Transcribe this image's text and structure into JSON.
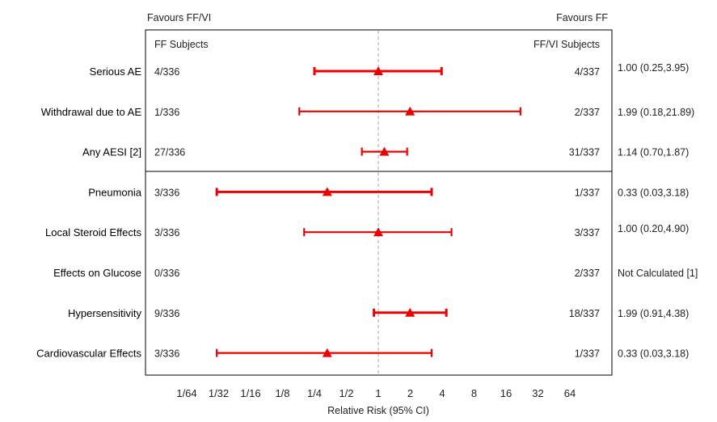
{
  "chart_data": {
    "type": "forest",
    "header_left": "Favours FF/VI",
    "header_right": "Favours FF",
    "col_left": "FF Subjects",
    "col_right": "FF/VI Subjects",
    "xlabel": "Relative Risk (95% CI)",
    "xscale": "log2",
    "xlim": [
      0.015625,
      64
    ],
    "reference_line": 1,
    "colors": {
      "marker": "#ee0000",
      "reference": "#aaaaaa",
      "frame": "#000000"
    },
    "xticks": [
      {
        "value": 0.015625,
        "label": "1/64"
      },
      {
        "value": 0.03125,
        "label": "1/32"
      },
      {
        "value": 0.0625,
        "label": "1/16"
      },
      {
        "value": 0.125,
        "label": "1/8"
      },
      {
        "value": 0.25,
        "label": "1/4"
      },
      {
        "value": 0.5,
        "label": "1/2"
      },
      {
        "value": 1,
        "label": "1"
      },
      {
        "value": 2,
        "label": "2"
      },
      {
        "value": 4,
        "label": "4"
      },
      {
        "value": 8,
        "label": "8"
      },
      {
        "value": 16,
        "label": "16"
      },
      {
        "value": 32,
        "label": "32"
      },
      {
        "value": 64,
        "label": "64"
      }
    ],
    "rows": [
      {
        "label": "Serious AE",
        "left": "4/336",
        "right": "4/337",
        "rr": 1.0,
        "lo": 0.25,
        "hi": 3.95,
        "text": "1.00 (0.25,3.95)",
        "thick": true
      },
      {
        "label": "Withdrawal due to AE",
        "left": "1/336",
        "right": "2/337",
        "rr": 1.99,
        "lo": 0.18,
        "hi": 21.89,
        "text": "1.99 (0.18,21.89)"
      },
      {
        "label": "Any AESI [2]",
        "left": "27/336",
        "right": "31/337",
        "rr": 1.14,
        "lo": 0.7,
        "hi": 1.87,
        "text": "1.14 (0.70,1.87)"
      },
      {
        "label": "Pneumonia",
        "left": "3/336",
        "right": "1/337",
        "rr": 0.33,
        "lo": 0.03,
        "hi": 3.18,
        "text": "0.33 (0.03,3.18)",
        "thick": true
      },
      {
        "label": "Local Steroid Effects",
        "left": "3/336",
        "right": "3/337",
        "rr": 1.0,
        "lo": 0.2,
        "hi": 4.9,
        "text": "1.00 (0.20,4.90)"
      },
      {
        "label": "Effects on Glucose",
        "left": "0/336",
        "right": "2/337",
        "rr": null,
        "lo": null,
        "hi": null,
        "text": "Not Calculated [1]"
      },
      {
        "label": "Hypersensitivity",
        "left": "9/336",
        "right": "18/337",
        "rr": 1.99,
        "lo": 0.91,
        "hi": 4.38,
        "text": "1.99 (0.91,4.38)",
        "thick": true
      },
      {
        "label": "Cardiovascular Effects",
        "left": "3/336",
        "right": "1/337",
        "rr": 0.33,
        "lo": 0.03,
        "hi": 3.18,
        "text": "0.33 (0.03,3.18)"
      }
    ],
    "separator_after": 2
  }
}
